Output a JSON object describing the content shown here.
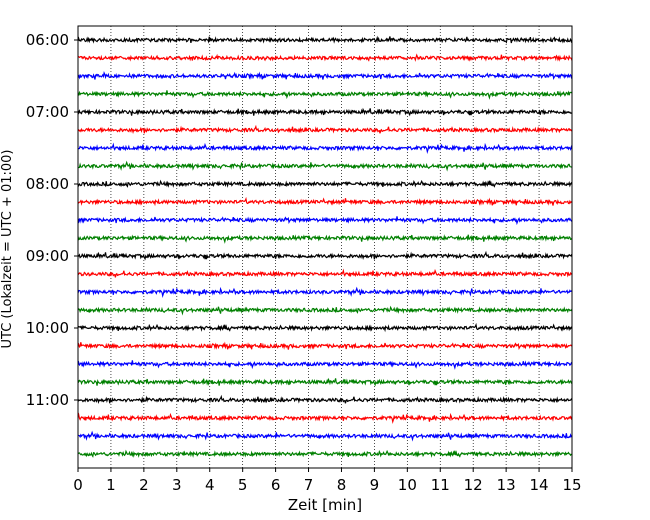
{
  "chart_data": {
    "type": "line",
    "xlabel": "Zeit  [min]",
    "ylabel": "UTC (Lokalzeit = UTC + 01:00)",
    "xlim": [
      0,
      15
    ],
    "xticks": [
      "0",
      "1",
      "2",
      "3",
      "4",
      "5",
      "6",
      "7",
      "8",
      "9",
      "10",
      "11",
      "12",
      "13",
      "14",
      "15"
    ],
    "yticks": [
      "06:00",
      "07:00",
      "08:00",
      "09:00",
      "10:00",
      "11:00"
    ],
    "ytick_rows": [
      0,
      4,
      8,
      12,
      16,
      20
    ],
    "trace_count": 24,
    "trace_interval_min": 15,
    "first_trace": "06:00",
    "trace_colors": [
      "#000000",
      "#ff0000",
      "#0000ff",
      "#008000"
    ],
    "grid_x": true,
    "grid_style": "dotted"
  }
}
